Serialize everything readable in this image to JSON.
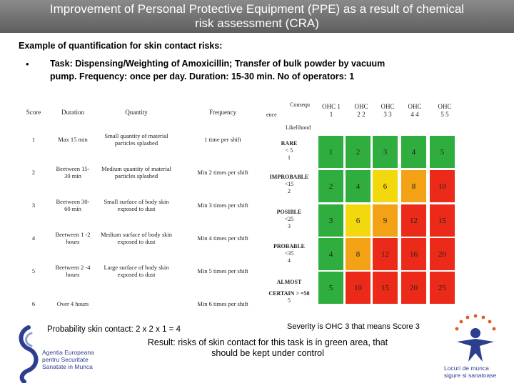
{
  "title": {
    "line1": "Improvement of Personal Protective Equipment (PPE)  as a result of chemical",
    "line2": "risk assessment (CRA)"
  },
  "subtitle": "Example of quantification for skin contact risks:",
  "bullet": "•",
  "task": "Task: Dispensing/Weighting of Amoxicillin; Transfer of bulk powder by vacuum pump. Frequency: once per day. Duration: 15-30 min. No of operators: 1",
  "score_table": {
    "headers": [
      "Score",
      "Duration",
      "Quantity",
      "Frequency"
    ],
    "rows": [
      {
        "score": "1",
        "duration": "Max 15 min",
        "quantity": "Small quantity of material particles splashed",
        "frequency": "1 time per shift"
      },
      {
        "score": "2",
        "duration": "Beetween 15-30 min",
        "quantity": "Medium quantity of material particles splashed",
        "frequency": "Min 2 times per shift"
      },
      {
        "score": "3",
        "duration": "Beetween 30-60 min",
        "quantity": "Small surface of body skin exposed to dust",
        "frequency": "Min 3 times per shift"
      },
      {
        "score": "4",
        "duration": "Beetween 1 -2 hours",
        "quantity": "Medium surface of body skin exposed to dust",
        "frequency": "Min 4 times per shift"
      },
      {
        "score": "5",
        "duration": "Beetween 2 -4 hours",
        "quantity": "Large surface of body skin exposed to dust",
        "frequency": "Min 5 times per shift"
      },
      {
        "score": "6",
        "duration": "Over 4 hours",
        "quantity": "",
        "frequency": "Min 6 times per shift"
      }
    ]
  },
  "matrix": {
    "consequence_label": "Consequ",
    "consequence_label_2": "ence",
    "likelihood_label": "Likelihood",
    "severity_headers": [
      {
        "name": "OHC 1",
        "value": "1"
      },
      {
        "name": "OHC",
        "value": "2 2"
      },
      {
        "name": "OHC",
        "value": "3 3"
      },
      {
        "name": "OHC",
        "value": "4 4"
      },
      {
        "name": "OHC",
        "value": "5 5"
      }
    ],
    "likelihood_rows": [
      {
        "name": "RARE",
        "detail": "< 5",
        "score": "1"
      },
      {
        "name": "IMPROBABLE",
        "detail": "<15",
        "score": "2"
      },
      {
        "name": "POSIBLE",
        "detail": "<25",
        "score": "3"
      },
      {
        "name": "PROBABLE",
        "detail": "<35",
        "score": "4"
      },
      {
        "name": "ALMOST",
        "detail": "CERTAIN > =50",
        "score": "5"
      }
    ],
    "cells": [
      [
        "1",
        "2",
        "3",
        "4",
        "5"
      ],
      [
        "2",
        "4",
        "6",
        "8",
        "10"
      ],
      [
        "3",
        "6",
        "9",
        "12",
        "15"
      ],
      [
        "4",
        "8",
        "12",
        "16",
        "20"
      ],
      [
        "5",
        "10",
        "15",
        "20",
        "25"
      ]
    ],
    "cell_colors": [
      [
        "#2fae3f",
        "#2fae3f",
        "#2fae3f",
        "#2fae3f",
        "#2fae3f"
      ],
      [
        "#2fae3f",
        "#2fae3f",
        "#f4d80e",
        "#f2a214",
        "#ec2a1a"
      ],
      [
        "#2fae3f",
        "#f4d80e",
        "#f2a214",
        "#ec2a1a",
        "#ec2a1a"
      ],
      [
        "#2fae3f",
        "#f2a214",
        "#ec2a1a",
        "#ec2a1a",
        "#ec2a1a"
      ],
      [
        "#2fae3f",
        "#ec2a1a",
        "#ec2a1a",
        "#ec2a1a",
        "#ec2a1a"
      ]
    ]
  },
  "probability_note": "Probability skin contact: 2 x 2 x 1 = 4",
  "severity_note": "Severity is OHC 3 that means Score 3",
  "result": "Result: risks of skin contact for this task is in green area, that should be kept under control",
  "logo_left": {
    "line1": "Agentia Europeana",
    "line2": "pentru Securitate",
    "line3": "Sanatate in Munca"
  },
  "logo_right": {
    "line1": "Locuri de munca",
    "line2": "sigure si sanatoase"
  },
  "colors": {
    "title_bar": "#6e6e6e",
    "green": "#2fae3f",
    "yellow": "#f4d80e",
    "orange": "#f2a214",
    "red": "#ec2a1a",
    "logo_blue": "#2b3e8f"
  }
}
